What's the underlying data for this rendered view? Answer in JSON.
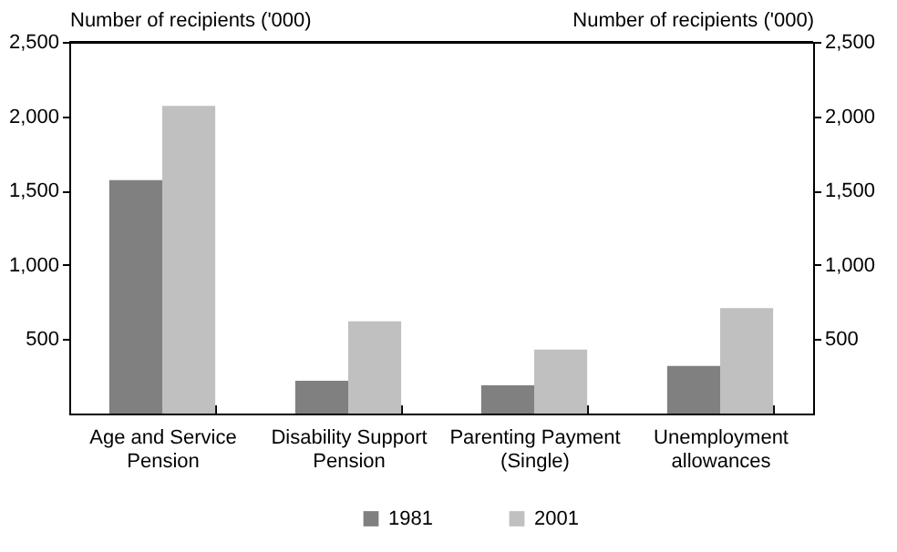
{
  "chart_data": {
    "type": "bar",
    "ylabel": "Number of recipients ('000)",
    "y2label": "Number of recipients ('000)",
    "categories": [
      "Age and Service Pension",
      "Disability Support Pension",
      "Parenting Payment (Single)",
      "Unemployment allowances"
    ],
    "series": [
      {
        "name": "1981",
        "color": "#808080",
        "values": [
          1570,
          220,
          190,
          320
        ]
      },
      {
        "name": "2001",
        "color": "#c0c0c0",
        "values": [
          2070,
          620,
          430,
          710
        ]
      }
    ],
    "ylim": [
      0,
      2500
    ],
    "yticks": [
      500,
      {
        "value": 1000,
        "label": "1,000"
      },
      {
        "value": 1500,
        "label": "1,500"
      },
      {
        "value": 2000,
        "label": "2,000"
      },
      {
        "value": 2500,
        "label": "2,500"
      }
    ],
    "y2lim": [
      0,
      2500
    ],
    "y2ticks": [
      500,
      {
        "value": 1000,
        "label": "1,000"
      },
      {
        "value": 1500,
        "label": "1,500"
      },
      {
        "value": 2000,
        "label": "2,000"
      },
      {
        "value": 2500,
        "label": "2,500"
      }
    ],
    "grid": false,
    "legend": "bottom"
  }
}
